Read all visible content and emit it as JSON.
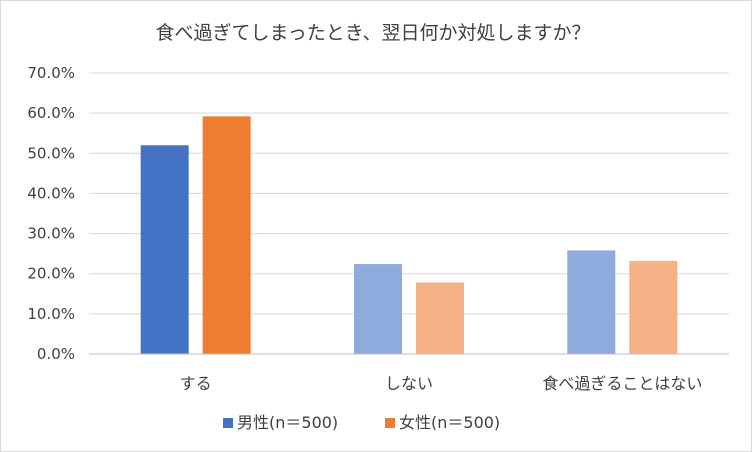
{
  "chart_data": {
    "type": "bar",
    "title": "食べ過ぎてしまったとき、翌日何か対処しますか？",
    "categories": [
      "する",
      "しない",
      "食べ過ぎることはない"
    ],
    "series": [
      {
        "name": "男性(n＝500)",
        "values": [
          52.0,
          22.4,
          25.8
        ],
        "colors": [
          "#4472c4",
          "#8faadc",
          "#8faadc"
        ],
        "legend_color": "#4472c4"
      },
      {
        "name": "女性(n＝500)",
        "values": [
          59.2,
          17.8,
          23.2
        ],
        "colors": [
          "#ed7d31",
          "#f4b183",
          "#f4b183"
        ],
        "legend_color": "#ed7d31"
      }
    ],
    "yticks": [
      "0.0%",
      "10.0%",
      "20.0%",
      "30.0%",
      "40.0%",
      "50.0%",
      "60.0%",
      "70.0%"
    ],
    "ylim": [
      0,
      70
    ],
    "grid": true,
    "legend_position": "bottom",
    "xlabel": "",
    "ylabel": ""
  }
}
